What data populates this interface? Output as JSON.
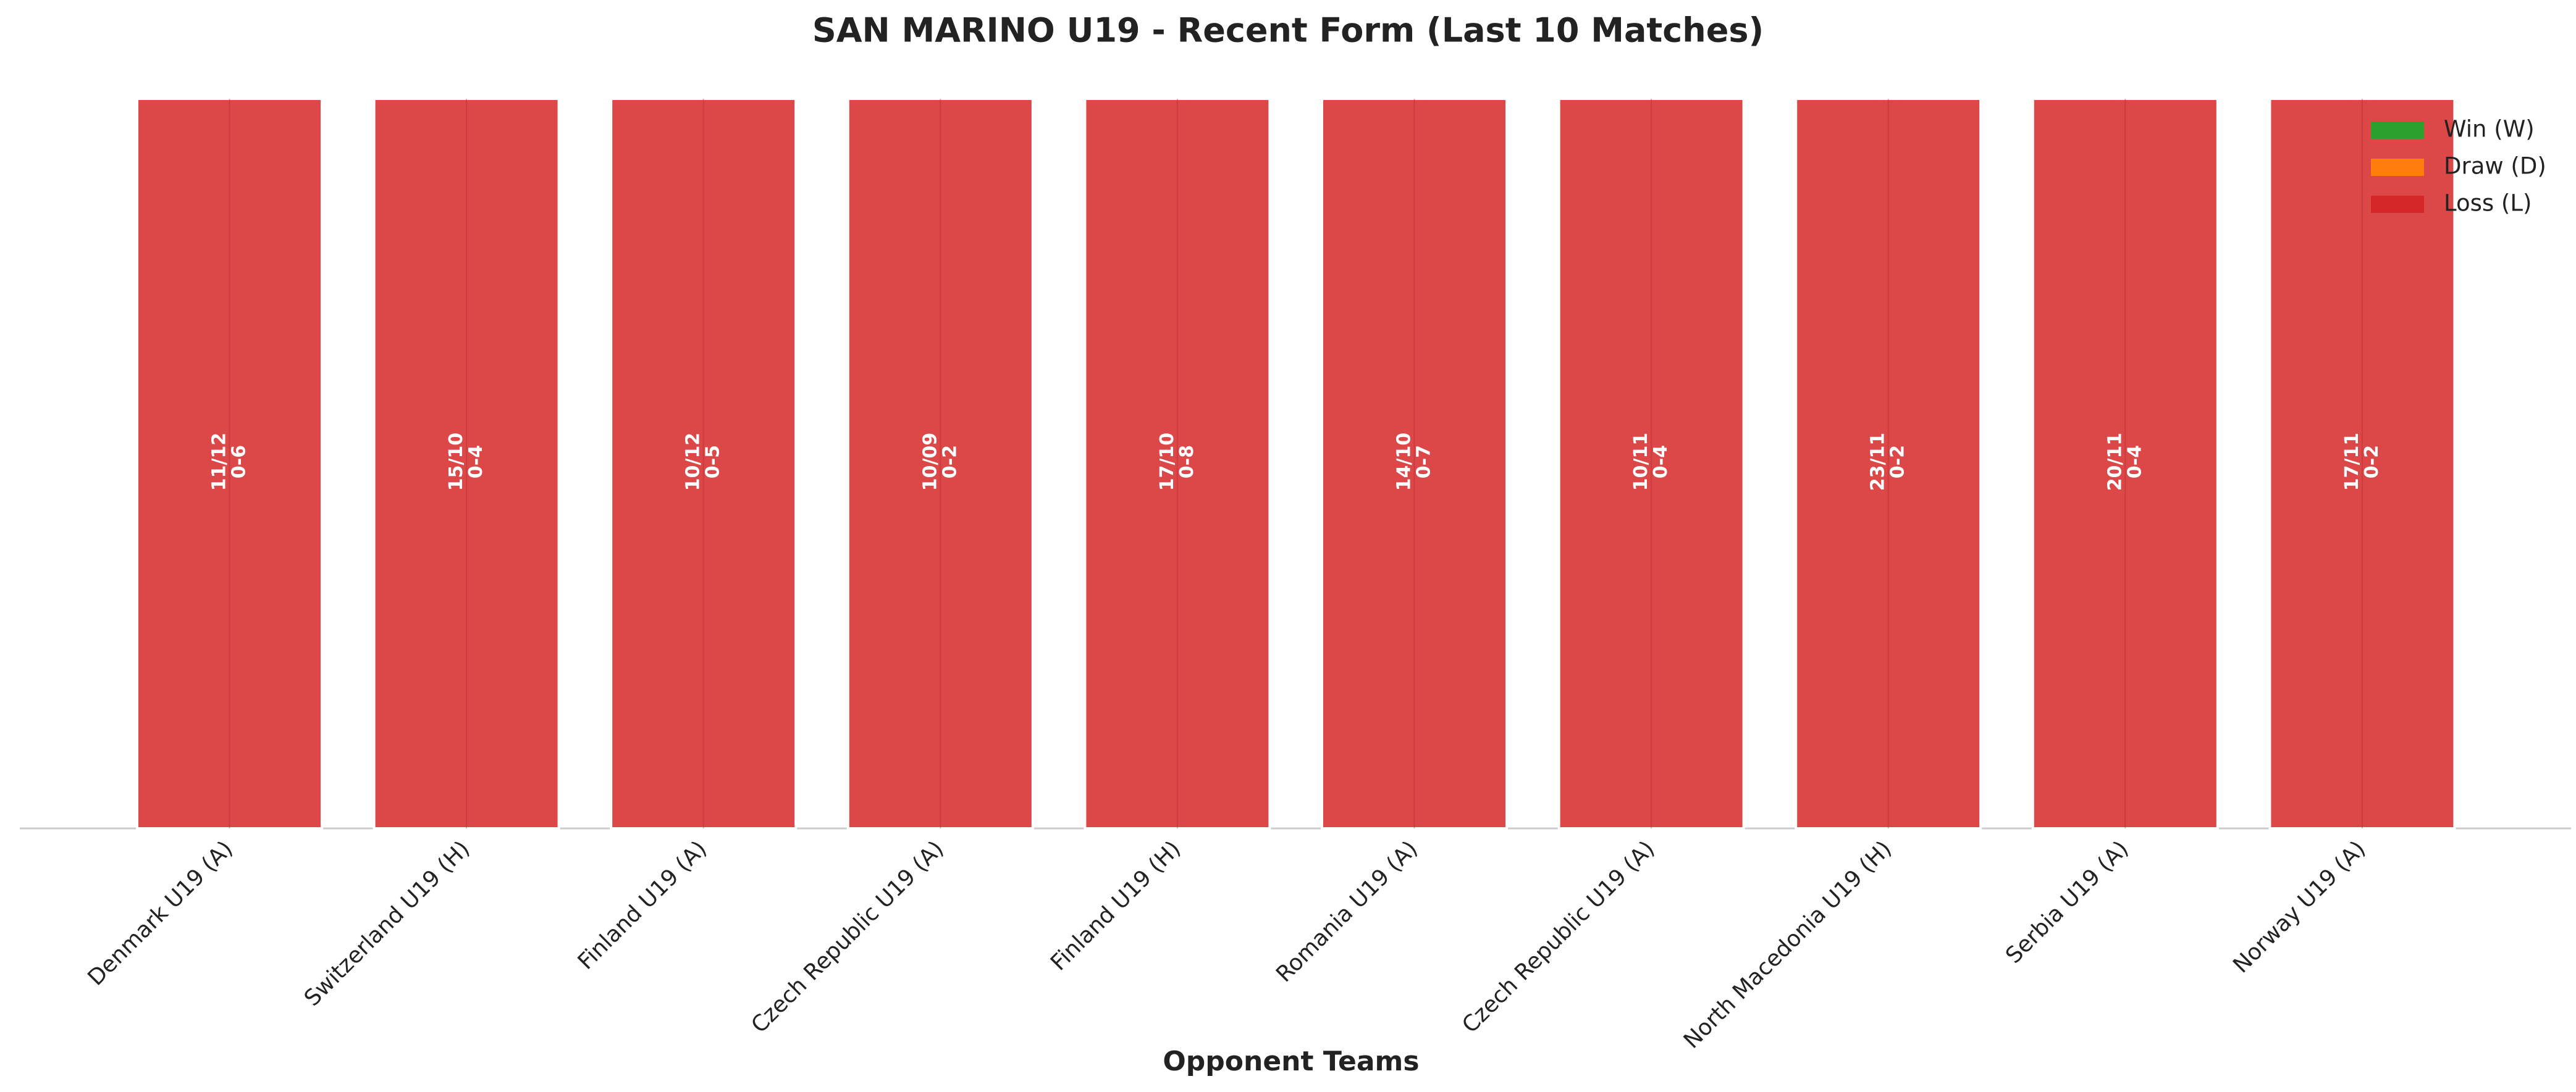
{
  "chart_data": {
    "type": "bar",
    "title": "SAN MARINO U19 - Recent Form (Last 10 Matches)",
    "x_label": "Opponent Teams",
    "categories": [
      "Denmark U19 (A)",
      "Switzerland U19 (H)",
      "Finland U19 (A)",
      "Czech Republic U19 (A)",
      "Finland U19 (H)",
      "Romania U19 (A)",
      "Czech Republic U19 (A)",
      "North Macedonia U19 (H)",
      "Serbia U19 (A)",
      "Norway U19 (A)"
    ],
    "dates": [
      "11/12",
      "15/10",
      "10/12",
      "10/09",
      "17/10",
      "14/10",
      "10/11",
      "23/11",
      "20/11",
      "17/11"
    ],
    "scores": [
      "0-6",
      "0-4",
      "0-5",
      "0-2",
      "0-8",
      "0-7",
      "0-4",
      "0-2",
      "0-4",
      "0-2"
    ],
    "series": [
      {
        "name": "Win (W)",
        "color": "#2ca02c",
        "values": [
          0,
          0,
          0,
          0,
          0,
          0,
          0,
          0,
          0,
          0
        ]
      },
      {
        "name": "Draw (D)",
        "color": "#ff7f0e",
        "values": [
          0,
          0,
          0,
          0,
          0,
          0,
          0,
          0,
          0,
          0
        ]
      },
      {
        "name": "Loss (L)",
        "color": "#d62728",
        "values": [
          1,
          1,
          1,
          1,
          1,
          1,
          1,
          1,
          1,
          1
        ]
      }
    ],
    "ylim": [
      0,
      1
    ],
    "legend": "upper right"
  }
}
